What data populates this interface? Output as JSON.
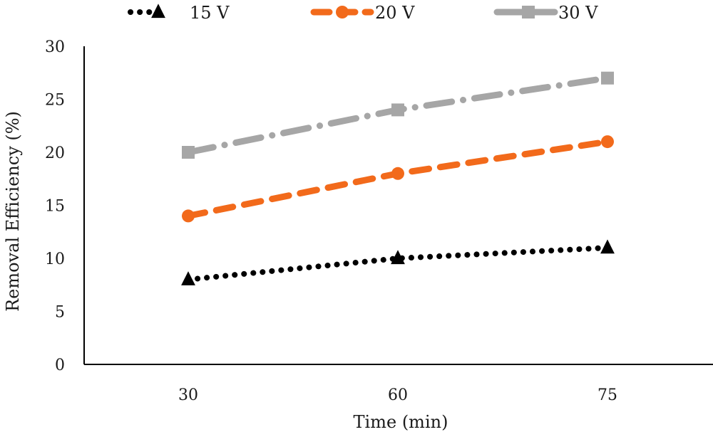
{
  "chart_data": {
    "type": "line",
    "xlabel": "Time (min)",
    "ylabel": "Removal Efficiency  (%)",
    "categories": [
      "30",
      "60",
      "75"
    ],
    "ylim": [
      0,
      30
    ],
    "yticks": [
      "0",
      "5",
      "10",
      "15",
      "20",
      "25",
      "30"
    ],
    "grid": false,
    "legend_position": "top",
    "series": [
      {
        "name": "15 V",
        "values": [
          8,
          10,
          11
        ],
        "color": "#000000",
        "marker": "triangle",
        "line_style": "dotted"
      },
      {
        "name": "20 V",
        "values": [
          14,
          18,
          21
        ],
        "color": "#f26a1b",
        "marker": "circle",
        "line_style": "dashed"
      },
      {
        "name": "30 V",
        "values": [
          20,
          24,
          27
        ],
        "color": "#a6a6a6",
        "marker": "square",
        "line_style": "dash-dot"
      }
    ]
  }
}
